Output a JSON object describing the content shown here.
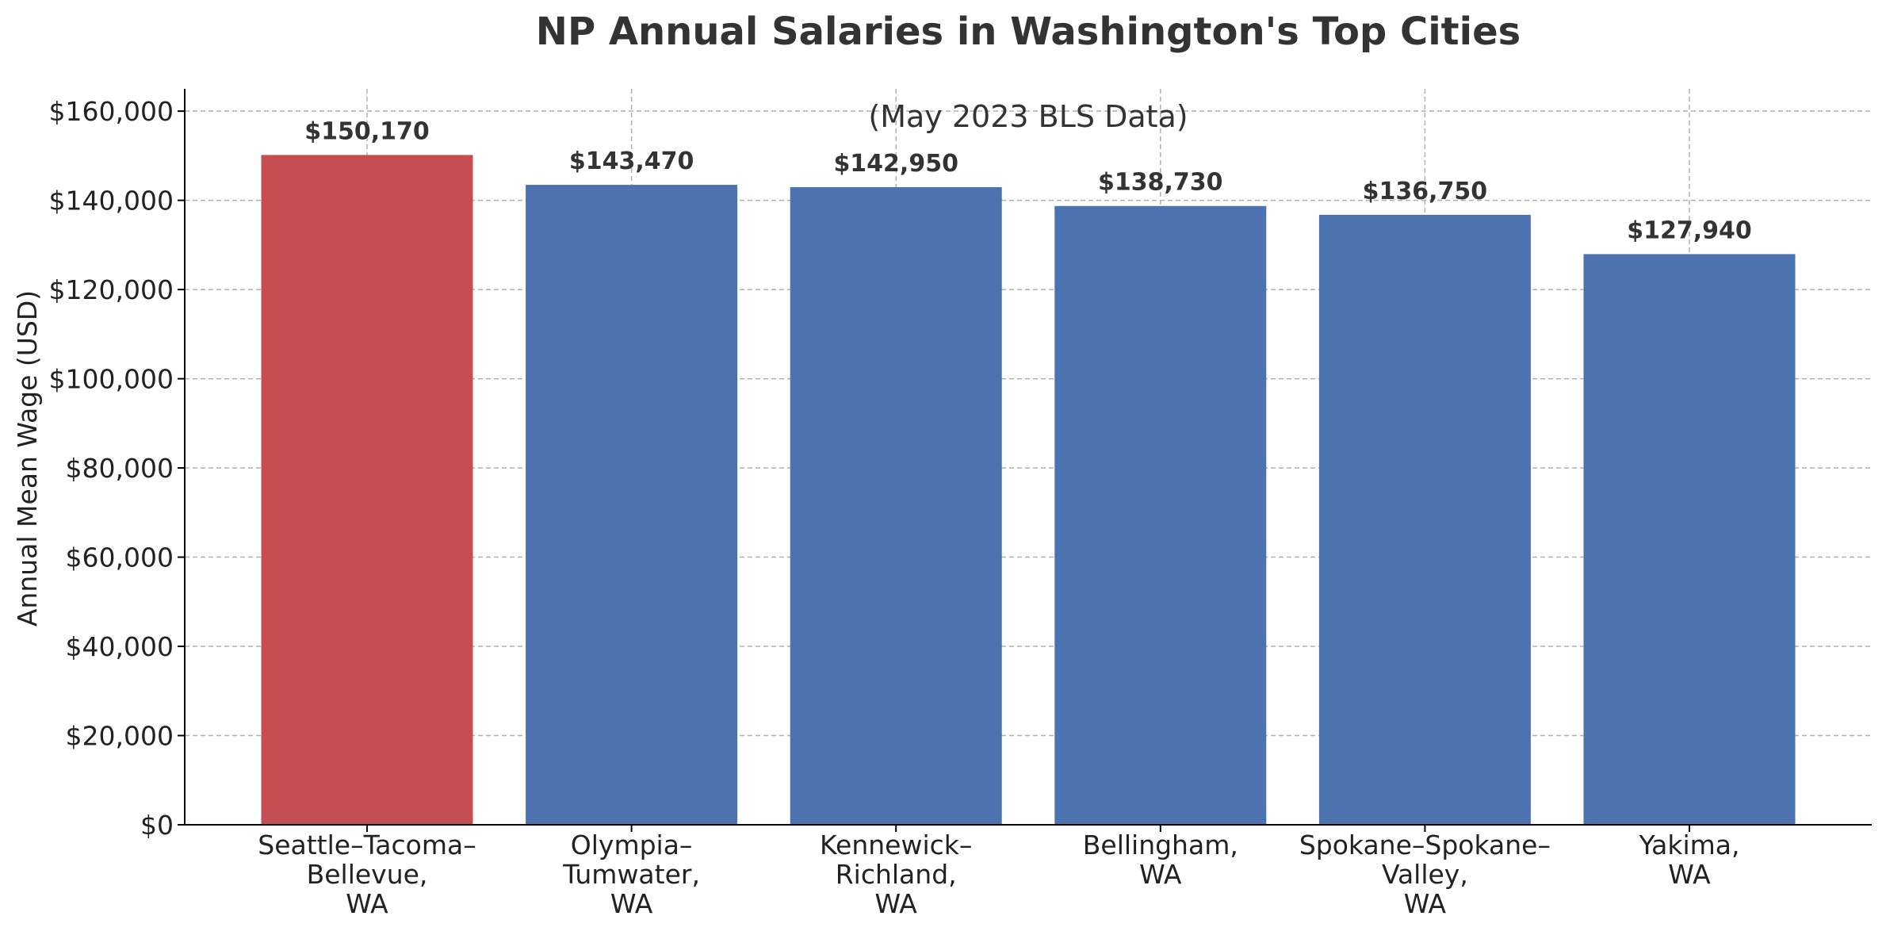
{
  "chart_data": {
    "type": "bar",
    "title": "NP Annual Salaries in Washington's Top Cities",
    "subtitle": "(May 2023 BLS Data)",
    "xlabel": "",
    "ylabel": "Annual Mean Wage (USD)",
    "ylim": [
      0,
      165000
    ],
    "yticks": [
      0,
      20000,
      40000,
      60000,
      80000,
      100000,
      120000,
      140000,
      160000
    ],
    "ytick_labels": [
      "$0",
      "$20,000",
      "$40,000",
      "$60,000",
      "$80,000",
      "$100,000",
      "$120,000",
      "$140,000",
      "$160,000"
    ],
    "grid": true,
    "categories": [
      [
        "Seattle–Tacoma–",
        "Bellevue,",
        "WA"
      ],
      [
        "Olympia–",
        "Tumwater,",
        "WA"
      ],
      [
        "Kennewick–",
        "Richland,",
        "WA"
      ],
      [
        "Bellingham,",
        "WA"
      ],
      [
        "Spokane–Spokane–",
        "Valley,",
        "WA"
      ],
      [
        "Yakima,",
        "WA"
      ]
    ],
    "values": [
      150170,
      143470,
      142950,
      138730,
      136750,
      127940
    ],
    "data_labels": [
      "$150,170",
      "$143,470",
      "$142,950",
      "$138,730",
      "$136,750",
      "$127,940"
    ],
    "colors": {
      "highlight": "#c44e52",
      "bar": "#4c72b0"
    },
    "highlight_index": 0
  }
}
